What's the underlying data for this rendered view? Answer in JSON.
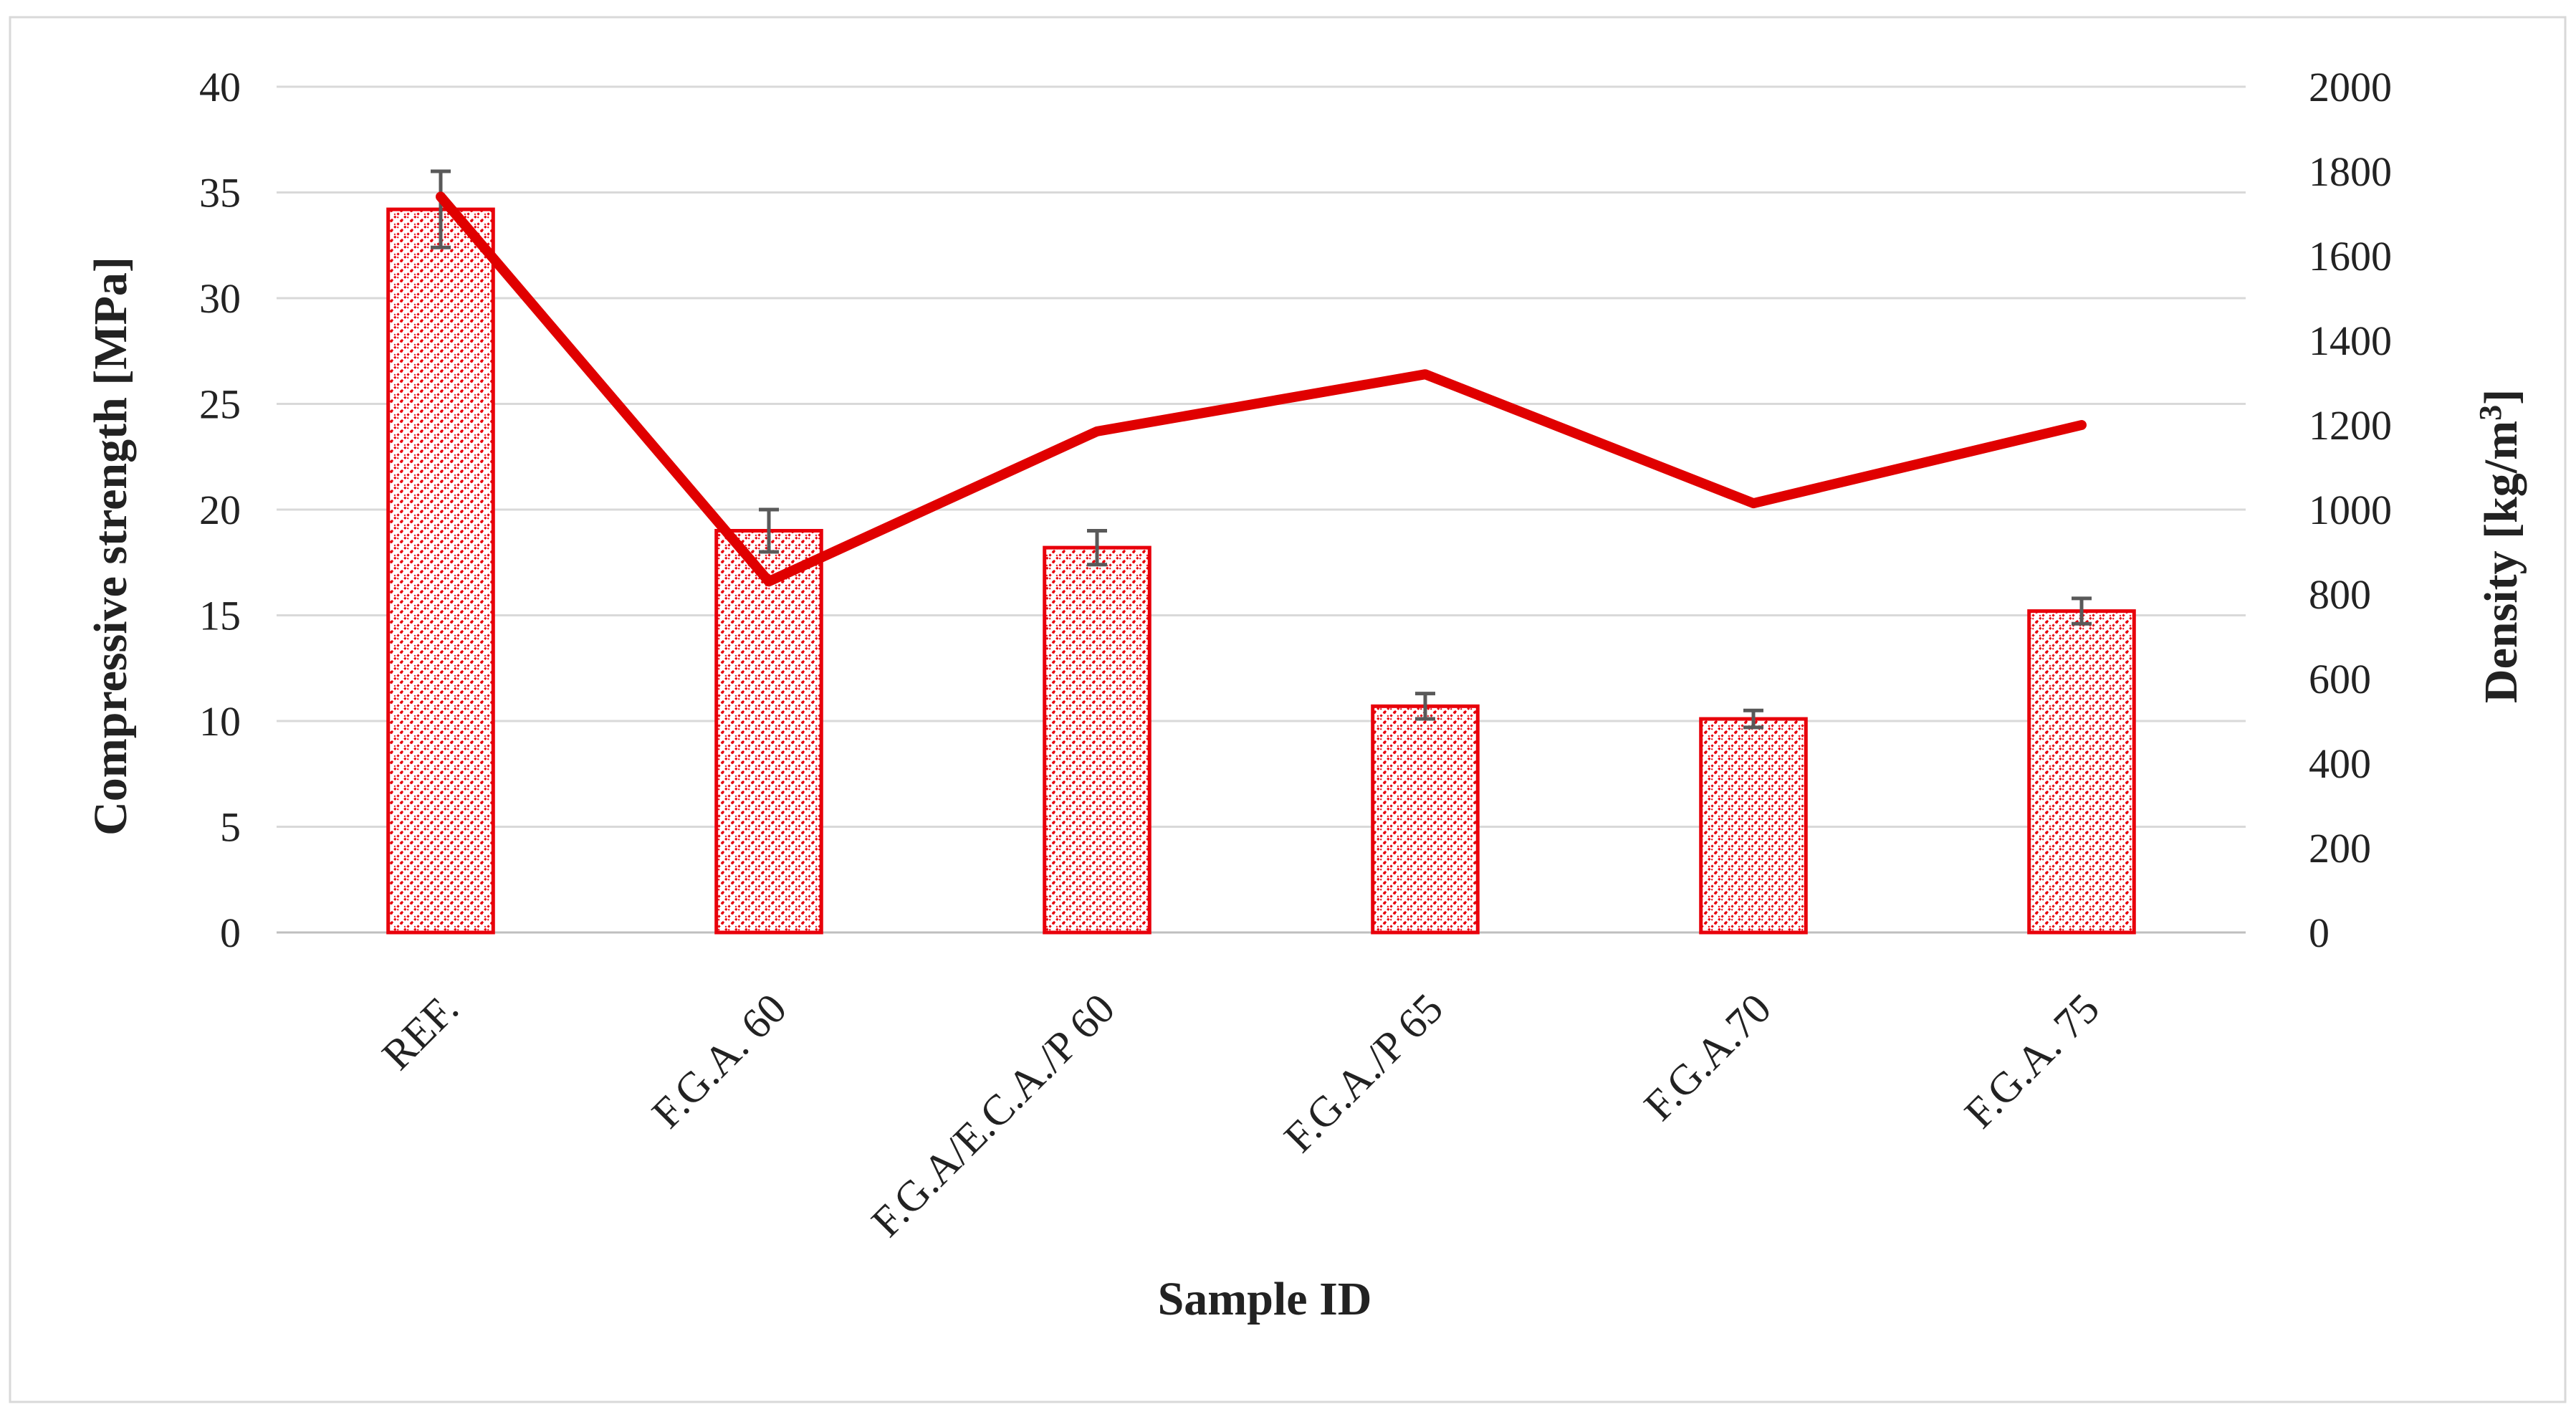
{
  "chart_data": {
    "type": "bar",
    "categories": [
      "REF.",
      "F.G.A. 60",
      "F.G.A/E.C.A./P 60",
      "F.G.A./P 65",
      "F.G.A.70",
      "F.G.A. 75"
    ],
    "series": [
      {
        "kind": "bar",
        "axis": "left",
        "values": [
          34.2,
          19.0,
          18.2,
          10.7,
          10.1,
          15.2
        ],
        "error": [
          1.8,
          1.0,
          0.8,
          0.6,
          0.4,
          0.6
        ]
      },
      {
        "kind": "line",
        "axis": "right",
        "values": [
          1740,
          830,
          1185,
          1320,
          1015,
          1200
        ]
      }
    ],
    "xlabel": "Sample ID",
    "ylabel": "Compressive strength [MPa]",
    "y2label": "Density [kg/m³]",
    "y2label_parts": {
      "text": "Density [kg/m",
      "sup": "3",
      "close": "]"
    },
    "ylim": [
      0,
      40
    ],
    "y2lim": [
      0,
      2000
    ],
    "yticks": [
      "0",
      "5",
      "10",
      "15",
      "20",
      "25",
      "30",
      "35",
      "40"
    ],
    "y2ticks": [
      "0",
      "200",
      "400",
      "600",
      "800",
      "1000",
      "1200",
      "1400",
      "1600",
      "1800",
      "2000"
    ],
    "grid": true,
    "legend": "none",
    "colors": {
      "bar": "#e8000b",
      "line": "#e00000",
      "grid": "#d9d9d9",
      "error": "#595959",
      "frame": "#d9d9d9"
    }
  }
}
